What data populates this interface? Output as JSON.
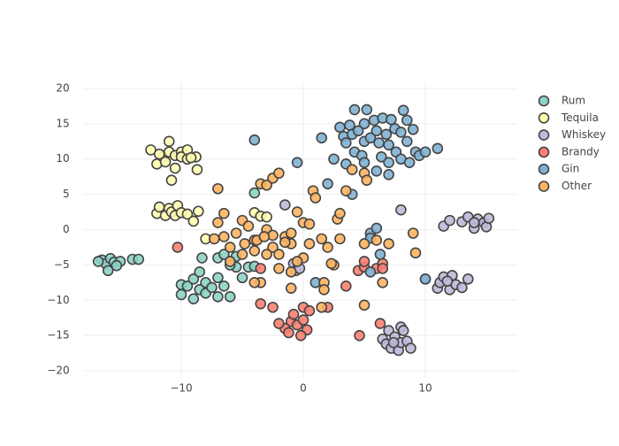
{
  "chart_data": {
    "type": "scatter",
    "xlim": [
      -18,
      17.5
    ],
    "ylim": [
      -21,
      21
    ],
    "xticks": [
      {
        "value": -10,
        "label": "−10"
      },
      0,
      10
    ],
    "yticks": [
      {
        "value": -20,
        "label": "−20"
      },
      {
        "value": -15,
        "label": "−15"
      },
      {
        "value": -10,
        "label": "−10"
      },
      {
        "value": -5,
        "label": "−5"
      },
      0,
      5,
      10,
      15,
      20
    ],
    "grid": true,
    "legend": "top-right",
    "series": [
      {
        "name": "Rum",
        "color": "#8dd3c7",
        "x": [
          -16.5,
          -16.2,
          -15.8,
          -15.5,
          -16,
          -15,
          -14,
          -13.5,
          -16.8,
          -15.3,
          -10,
          -10,
          -9.5,
          -9,
          -9,
          -8.5,
          -8,
          -8,
          -7.5,
          -7,
          -8.5,
          -7,
          -6.5,
          -6,
          -5.5,
          -5,
          -4.5,
          -4,
          -6,
          -7,
          -6.5,
          -5.5,
          -4,
          -8.3
        ],
        "y": [
          -4.3,
          -4.8,
          -4.1,
          -4.6,
          -5.8,
          -4.5,
          -4.2,
          -4.2,
          -4.5,
          -5.1,
          -7.8,
          -9.2,
          -8,
          -7,
          -9.8,
          -8.5,
          -9,
          -7.5,
          -8.2,
          -9.5,
          -6,
          -6.8,
          -8,
          -9.5,
          -5.3,
          -6.8,
          -5.3,
          -5.2,
          -5,
          -4,
          -3.5,
          -3.8,
          5.2,
          -4
        ]
      },
      {
        "name": "Tequila",
        "color": "#ffffb3",
        "x": [
          -12.5,
          -12,
          -11.5,
          -11.3,
          -11,
          -11,
          -10.5,
          -10.5,
          -10,
          -10,
          -9.5,
          -9.5,
          -8.8,
          -8.7,
          -10.8,
          -11.8,
          -9.2,
          -12,
          -11.8,
          -11.3,
          -11,
          -10.8,
          -10.5,
          -10.3,
          -10,
          -9.5,
          -9,
          -8.6,
          -8,
          -4,
          -3.5,
          -3
        ],
        "y": [
          11.3,
          9.3,
          10.3,
          9.6,
          11,
          12.5,
          10.5,
          8.7,
          11,
          10.3,
          11.3,
          10,
          10.3,
          8.5,
          7,
          10.7,
          10.2,
          2.3,
          3.2,
          2,
          3,
          2.5,
          2,
          3.4,
          2.4,
          2.2,
          1.2,
          2.6,
          -1.3,
          2.4,
          1.9,
          1.8
        ]
      },
      {
        "name": "Whiskey",
        "color": "#bebada",
        "x": [
          11.5,
          12,
          13,
          13.5,
          14,
          14.3,
          14.8,
          15,
          15.2,
          14,
          10,
          11,
          11.2,
          11.5,
          12,
          12.2,
          12.5,
          13,
          13.5,
          11.8,
          6.5,
          6.8,
          7,
          7.2,
          7.5,
          7.8,
          8,
          8,
          8.5,
          8.8,
          8.2,
          7.4,
          -0.8,
          -0.6,
          -0.3,
          8,
          -1.5
        ],
        "y": [
          0.5,
          1.3,
          1.1,
          1.8,
          0.2,
          1.5,
          1,
          0.4,
          1.6,
          1,
          -7,
          -8.3,
          -7.5,
          -6.7,
          -8.5,
          -6.5,
          -7.8,
          -8.2,
          -7,
          -7.3,
          -15.5,
          -16.2,
          -14.3,
          -16.8,
          -15.2,
          -17.1,
          -16,
          -13.8,
          -15.8,
          -16.8,
          -14.3,
          -16,
          -4.8,
          -5.8,
          -5.5,
          2.8,
          3.5
        ]
      },
      {
        "name": "Brandy",
        "color": "#fb8072",
        "x": [
          -1,
          -1.5,
          -0.8,
          -0.5,
          0,
          0.3,
          -1.2,
          -2,
          -0.2,
          0,
          0.5,
          2,
          6.3,
          4.6,
          3.5,
          4.5,
          5,
          5,
          6,
          6.5,
          6.5,
          -3.5,
          -3.5,
          -2.5,
          -10.3
        ],
        "y": [
          -13,
          -14,
          -12,
          -13.5,
          -12.8,
          -14.2,
          -14.6,
          -13.3,
          -15,
          -11,
          -11.5,
          -11,
          -13.3,
          -15,
          -8,
          -5.8,
          -5.3,
          -4.5,
          -5.5,
          -4.8,
          -5.5,
          -5.5,
          -10.5,
          -11,
          -2.5
        ]
      },
      {
        "name": "Gin",
        "color": "#80b1d3",
        "x": [
          3,
          3.3,
          3.5,
          3.8,
          4,
          4.2,
          4.2,
          4.5,
          4.8,
          5,
          5,
          5.2,
          5.5,
          5.8,
          6,
          6.2,
          6.4,
          6.5,
          6.8,
          7,
          7,
          7.2,
          7.5,
          7.6,
          8,
          8,
          8.2,
          8.5,
          8.5,
          8.7,
          9,
          9.2,
          9.5,
          10,
          11,
          6,
          7,
          5,
          3.5,
          2.5,
          1.5,
          2,
          -0.5,
          -4,
          4,
          5.5,
          5.5,
          6,
          6.3,
          10,
          5.5,
          1
        ],
        "y": [
          14.5,
          13.2,
          12.3,
          14.8,
          13.5,
          11,
          17,
          14,
          10.5,
          12.5,
          15,
          17,
          13,
          15.5,
          14,
          12.3,
          10.3,
          15.8,
          13.5,
          12,
          9.5,
          15.6,
          14.3,
          11,
          10,
          13.8,
          16.9,
          15.5,
          12.5,
          9.5,
          14.2,
          11,
          10.5,
          11,
          11.5,
          8.3,
          7.8,
          9.5,
          9.3,
          10,
          13,
          6.5,
          9.5,
          12.7,
          5,
          -0.5,
          -1.2,
          0.2,
          -3.5,
          -7,
          -6,
          -7.5
        ]
      },
      {
        "name": "Other",
        "color": "#fdb462",
        "x": [
          -7,
          -6.5,
          -5,
          -4.5,
          -4,
          -3.5,
          -3,
          -2.5,
          -2,
          -3,
          -2.5,
          -2,
          -1.5,
          -1,
          -1,
          -0.5,
          0,
          0.5,
          0.5,
          0,
          -0.5,
          -1,
          -3.5,
          -4,
          -5,
          -6,
          -6.5,
          -5.5,
          -3,
          -2,
          -1.5,
          -2.5,
          -3.8,
          -4.8,
          -3.2,
          0.8,
          1,
          1.5,
          2,
          2.5,
          1.7,
          1.7,
          2.8,
          3,
          3.5,
          4,
          5,
          5.2,
          5,
          6,
          6.5,
          5,
          7,
          9,
          9.2,
          3,
          -7,
          -7.3,
          -6,
          -4,
          2.3,
          1.5,
          -1
        ],
        "y": [
          5.8,
          2.3,
          1.3,
          0.5,
          -1.5,
          6.5,
          6.3,
          7.3,
          8,
          0,
          -2.5,
          -3.5,
          -1,
          -2,
          -0.5,
          2.5,
          1,
          0.8,
          -2,
          -4,
          -4.5,
          -8.3,
          -7.5,
          -3,
          -3.5,
          -2.5,
          -1,
          -0.5,
          -3.5,
          -5.5,
          -1.8,
          -0.8,
          -1.5,
          -2,
          -1,
          5.5,
          4.5,
          -1.3,
          -2.5,
          -5,
          -7.5,
          -8.5,
          1.5,
          2.3,
          5.5,
          8.5,
          8,
          7,
          -2,
          -1.5,
          -7.5,
          -10.7,
          -2,
          -0.5,
          -3.3,
          -1.3,
          1,
          -1.3,
          -4.5,
          -7.5,
          -4.8,
          -11,
          -6
        ]
      }
    ]
  }
}
